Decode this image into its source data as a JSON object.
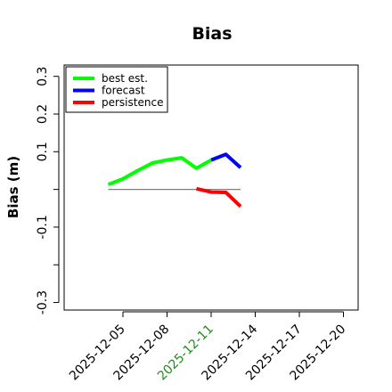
{
  "chart_data": {
    "type": "line",
    "title": "Bias",
    "ylabel": "Bias (m)",
    "xlabel": "",
    "ylim": [
      -0.32,
      0.33
    ],
    "xlim": [
      "2025-12-01",
      "2025-12-21"
    ],
    "yticks": [
      -0.3,
      -0.2,
      -0.1,
      0,
      0.1,
      0.2,
      0.3
    ],
    "ytick_labels": [
      "-0.3",
      "",
      "-0.1",
      "",
      "0.1",
      "0.2",
      "0.3"
    ],
    "xticks": [
      "2025-12-05",
      "2025-12-08",
      "2025-12-11",
      "2025-12-14",
      "2025-12-17",
      "2025-12-20"
    ],
    "highlighted_xtick": "2025-12-11",
    "highlight_color": "#228B22",
    "grid": false,
    "legend_position": "top-left",
    "zero_line": {
      "x_start": "2025-12-04",
      "x_end": "2025-12-13",
      "y": 0,
      "color": "#808080"
    },
    "series": [
      {
        "name": "best est.",
        "color": "#00ff00",
        "x": [
          "2025-12-04",
          "2025-12-05",
          "2025-12-06",
          "2025-12-07",
          "2025-12-08",
          "2025-12-09",
          "2025-12-10",
          "2025-12-11"
        ],
        "y": [
          0.013,
          0.028,
          0.05,
          0.07,
          0.078,
          0.084,
          0.056,
          0.078
        ]
      },
      {
        "name": "forecast",
        "color": "#0000ff",
        "x": [
          "2025-12-11",
          "2025-12-12",
          "2025-12-13"
        ],
        "y": [
          0.078,
          0.093,
          0.058
        ]
      },
      {
        "name": "persistence",
        "color": "#ff0000",
        "x": [
          "2025-12-10",
          "2025-12-11",
          "2025-12-12",
          "2025-12-13"
        ],
        "y": [
          0.002,
          -0.007,
          -0.008,
          -0.045
        ]
      }
    ]
  }
}
